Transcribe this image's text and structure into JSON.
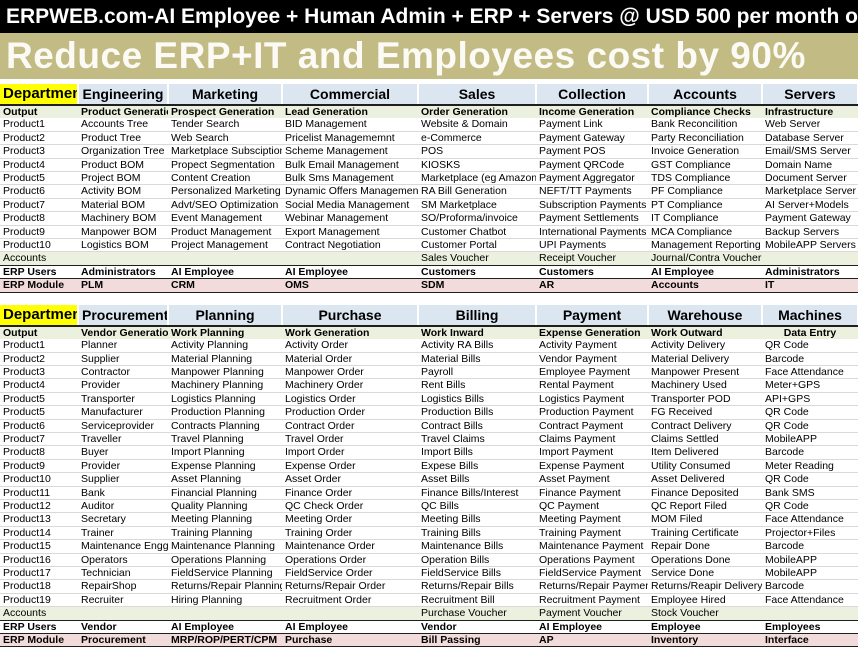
{
  "banner": {
    "top": "ERPWEB.com-AI Employee + Human Admin + ERP + Servers @ USD 500 per month only",
    "main": "Reduce ERP+IT and Employees cost by 90%"
  },
  "colors": {
    "banner_top_bg": "#000000",
    "banner_main_bg": "#c3bb84",
    "header_bg": "#dce6f1",
    "department_bg": "#ffff00",
    "green_row_bg": "#ebf1de",
    "pink_row_bg": "#f2dcdb"
  },
  "tables": [
    {
      "department_header": "Department",
      "columns": [
        "Engineering",
        "Marketing",
        "Commercial",
        "Sales",
        "Collection",
        "Accounts",
        "Servers"
      ],
      "output_row": {
        "label": "Output",
        "cells": [
          "Product Generation",
          "Prospect Generation",
          "Lead Generation",
          "Order Generation",
          "Income Generation",
          "Compliance Checks",
          "Infrastructure"
        ]
      },
      "product_rows": [
        {
          "label": "Product1",
          "cells": [
            "Accounts Tree",
            "Tender Search",
            "BID Management",
            "Website & Domain",
            "Payment Link",
            "Bank Reconcilition",
            "Web Server"
          ]
        },
        {
          "label": "Product2",
          "cells": [
            "Product Tree",
            "Web Search",
            "Pricelist Managememnt",
            "e-Commerce",
            "Payment Gateway",
            "Party Reconciliation",
            "Database Server"
          ]
        },
        {
          "label": "Product3",
          "cells": [
            "Organization Tree",
            "Marketplace Subsciption",
            "Scheme Management",
            "POS",
            "Payment POS",
            "Invoice Generation",
            "Email/SMS Server"
          ]
        },
        {
          "label": "Product4",
          "cells": [
            "Product BOM",
            "Propect Segmentation",
            "Bulk Email Management",
            "KIOSKS",
            "Payment QRCode",
            "GST Compliance",
            "Domain Name"
          ]
        },
        {
          "label": "Product5",
          "cells": [
            "Project BOM",
            "Content Creation",
            "Bulk Sms Management",
            "Marketplace (eg Amazon)",
            "Payment Aggregator",
            "TDS Compliance",
            "Document Server"
          ]
        },
        {
          "label": "Product6",
          "cells": [
            "Activity BOM",
            "Personalized Marketing",
            "Dynamic Offers Management",
            "RA Bill Generation",
            "NEFT/TT Payments",
            "PF Compliance",
            "Marketplace Server"
          ]
        },
        {
          "label": "Product7",
          "cells": [
            "Material BOM",
            "Advt/SEO Optimization",
            "Social Media Management",
            "SM Marketplace",
            "Subscription Payments",
            "PT Compliance",
            "AI Server+Models"
          ]
        },
        {
          "label": "Product8",
          "cells": [
            "Machinery BOM",
            "Event Management",
            "Webinar Management",
            "SO/Proforma/invoice",
            "Payment Settlements",
            "IT Compliance",
            "Payment Gateway"
          ]
        },
        {
          "label": "Product9",
          "cells": [
            "Manpower BOM",
            "Product Management",
            "Export Management",
            "Customer Chatbot",
            "International Payments",
            "MCA Compliance",
            "Backup Servers"
          ]
        },
        {
          "label": "Product10",
          "cells": [
            "Logistics BOM",
            "Project Management",
            "Contract Negotiation",
            "Customer Portal",
            "UPI Payments",
            "Management Reporting",
            "MobileAPP Servers"
          ]
        }
      ],
      "accounts_row": {
        "label": "Accounts",
        "cells": [
          "",
          "",
          "",
          "Sales Voucher",
          "Receipt Voucher",
          "Journal/Contra Voucher",
          ""
        ]
      },
      "erp_users_row": {
        "label": "ERP Users",
        "cells": [
          "Administrators",
          "AI Employee",
          "AI Employee",
          "Customers",
          "Customers",
          "AI Employee",
          "Administrators"
        ]
      },
      "erp_module_row": {
        "label": "ERP Module",
        "cells": [
          "PLM",
          "CRM",
          "OMS",
          "SDM",
          "AR",
          "Accounts",
          "IT"
        ]
      }
    },
    {
      "department_header": "Department",
      "columns": [
        "Procurement",
        "Planning",
        "Purchase",
        "Billing",
        "Payment",
        "Warehouse",
        "Machines"
      ],
      "output_row": {
        "label": "Output",
        "cells": [
          "Vendor Generation",
          "Work Planning",
          "Work Generation",
          "Work Inward",
          "Expense Generation",
          "Work Outward",
          "Data Entry"
        ]
      },
      "product_rows": [
        {
          "label": "Product1",
          "cells": [
            "Planner",
            "Activity Planning",
            "Activity Order",
            "Activity RA Bills",
            "Activity Payment",
            "Activity Delivery",
            "QR Code"
          ]
        },
        {
          "label": "Product2",
          "cells": [
            "Supplier",
            "Material Planning",
            "Material Order",
            "Material Bills",
            "Vendor Payment",
            "Material Delivery",
            "Barcode"
          ]
        },
        {
          "label": "Product3",
          "cells": [
            "Contractor",
            "Manpower Planning",
            "Manpower Order",
            "Payroll",
            "Employee Payment",
            "Manpower Present",
            "Face Attendance"
          ]
        },
        {
          "label": "Product4",
          "cells": [
            "Provider",
            "Machinery Planning",
            "Machinery Order",
            "Rent Bills",
            "Rental Payment",
            "Machinery Used",
            "Meter+GPS"
          ]
        },
        {
          "label": "Product5",
          "cells": [
            "Transporter",
            "Logistics Planning",
            "Logistics Order",
            "Logistics Bills",
            "Logistics Payment",
            "Transporter POD",
            "API+GPS"
          ]
        },
        {
          "label": "Product5",
          "cells": [
            "Manufacturer",
            "Production Planning",
            "Production Order",
            "Production Bills",
            "Production Payment",
            "FG Received",
            "QR Code"
          ]
        },
        {
          "label": "Product6",
          "cells": [
            "Serviceprovider",
            "Contracts Planning",
            "Contract Order",
            "Contract Bills",
            "Contract Payment",
            "Contract Delivery",
            "QR Code"
          ]
        },
        {
          "label": "Product7",
          "cells": [
            "Traveller",
            "Travel Planning",
            "Travel Order",
            "Travel Claims",
            "Claims Payment",
            "Claims Settled",
            "MobileAPP"
          ]
        },
        {
          "label": "Product8",
          "cells": [
            "Buyer",
            "Import Planning",
            "Import Order",
            "Import Bills",
            "Import Payment",
            "Item Delivered",
            "Barcode"
          ]
        },
        {
          "label": "Product9",
          "cells": [
            "Provider",
            "Expense Planning",
            "Expense Order",
            "Expese Bills",
            "Expense Payment",
            "Utility Consumed",
            "Meter Reading"
          ]
        },
        {
          "label": "Product10",
          "cells": [
            "Supplier",
            "Asset Planning",
            "Asset Order",
            "Asset Bills",
            "Asset Payment",
            "Asset Delivered",
            "QR Code"
          ]
        },
        {
          "label": "Product11",
          "cells": [
            "Bank",
            "Financial Planning",
            "Finance Order",
            "Finance Bills/Interest",
            "Finance Payment",
            "Finance Deposited",
            "Bank SMS"
          ]
        },
        {
          "label": "Product12",
          "cells": [
            "Auditor",
            "Quality Planning",
            "QC Check Order",
            "QC Bills",
            "QC Payment",
            "QC Report Filed",
            "QR Code"
          ]
        },
        {
          "label": "Product13",
          "cells": [
            "Secretary",
            "Meeting Planning",
            "Meeting Order",
            "Meeting Bills",
            "Meeting Payment",
            "MOM Filed",
            "Face Attendance"
          ]
        },
        {
          "label": "Product14",
          "cells": [
            "Trainer",
            "Training Planning",
            "Training Order",
            "Training Bills",
            "Training Payment",
            "Training Certificate",
            "Projector+Files"
          ]
        },
        {
          "label": "Product15",
          "cells": [
            "Maintenance Engg",
            "Maintenance Planning",
            "Maintenance Order",
            "Maintenance Bills",
            "Maintenance Payment",
            "Repair Done",
            "Barcode"
          ]
        },
        {
          "label": "Product16",
          "cells": [
            "Operators",
            "Operations Planning",
            "Operations Order",
            "Operation Bills",
            "Operations Payment",
            "Operations Done",
            "MobileAPP"
          ]
        },
        {
          "label": "Product17",
          "cells": [
            "Technician",
            "FieldService Planning",
            "FieldService Order",
            "FieldService Bills",
            "FieldService Payment",
            "Service Done",
            "MobileAPP"
          ]
        },
        {
          "label": "Product18",
          "cells": [
            "RepairShop",
            "Returns/Repair Planning",
            "Returns/Repair Order",
            "Returns/Repair Bills",
            "Returns/Repair Payment",
            "Returns/Reapir Delivery",
            "Barcode"
          ]
        },
        {
          "label": "Product19",
          "cells": [
            "Recruiter",
            "Hiring Planning",
            "Recruitment Order",
            "Recruitment Bill",
            "Recruitment Payment",
            "Employee Hired",
            "Face Attendance"
          ]
        }
      ],
      "accounts_row": {
        "label": "Accounts",
        "cells": [
          "",
          "",
          "",
          "Purchase Voucher",
          "Payment Voucher",
          "Stock Voucher",
          ""
        ]
      },
      "erp_users_row": {
        "label": "ERP Users",
        "cells": [
          "Vendor",
          "AI Employee",
          "AI Employee",
          "Vendor",
          "AI Employee",
          "Employee",
          "Employees"
        ]
      },
      "erp_module_row": {
        "label": "ERP Module",
        "cells": [
          "Procurement",
          "MRP/ROP/PERT/CPM",
          "Purchase",
          "Bill Passing",
          "AP",
          "Inventory",
          "Interface"
        ]
      }
    }
  ]
}
